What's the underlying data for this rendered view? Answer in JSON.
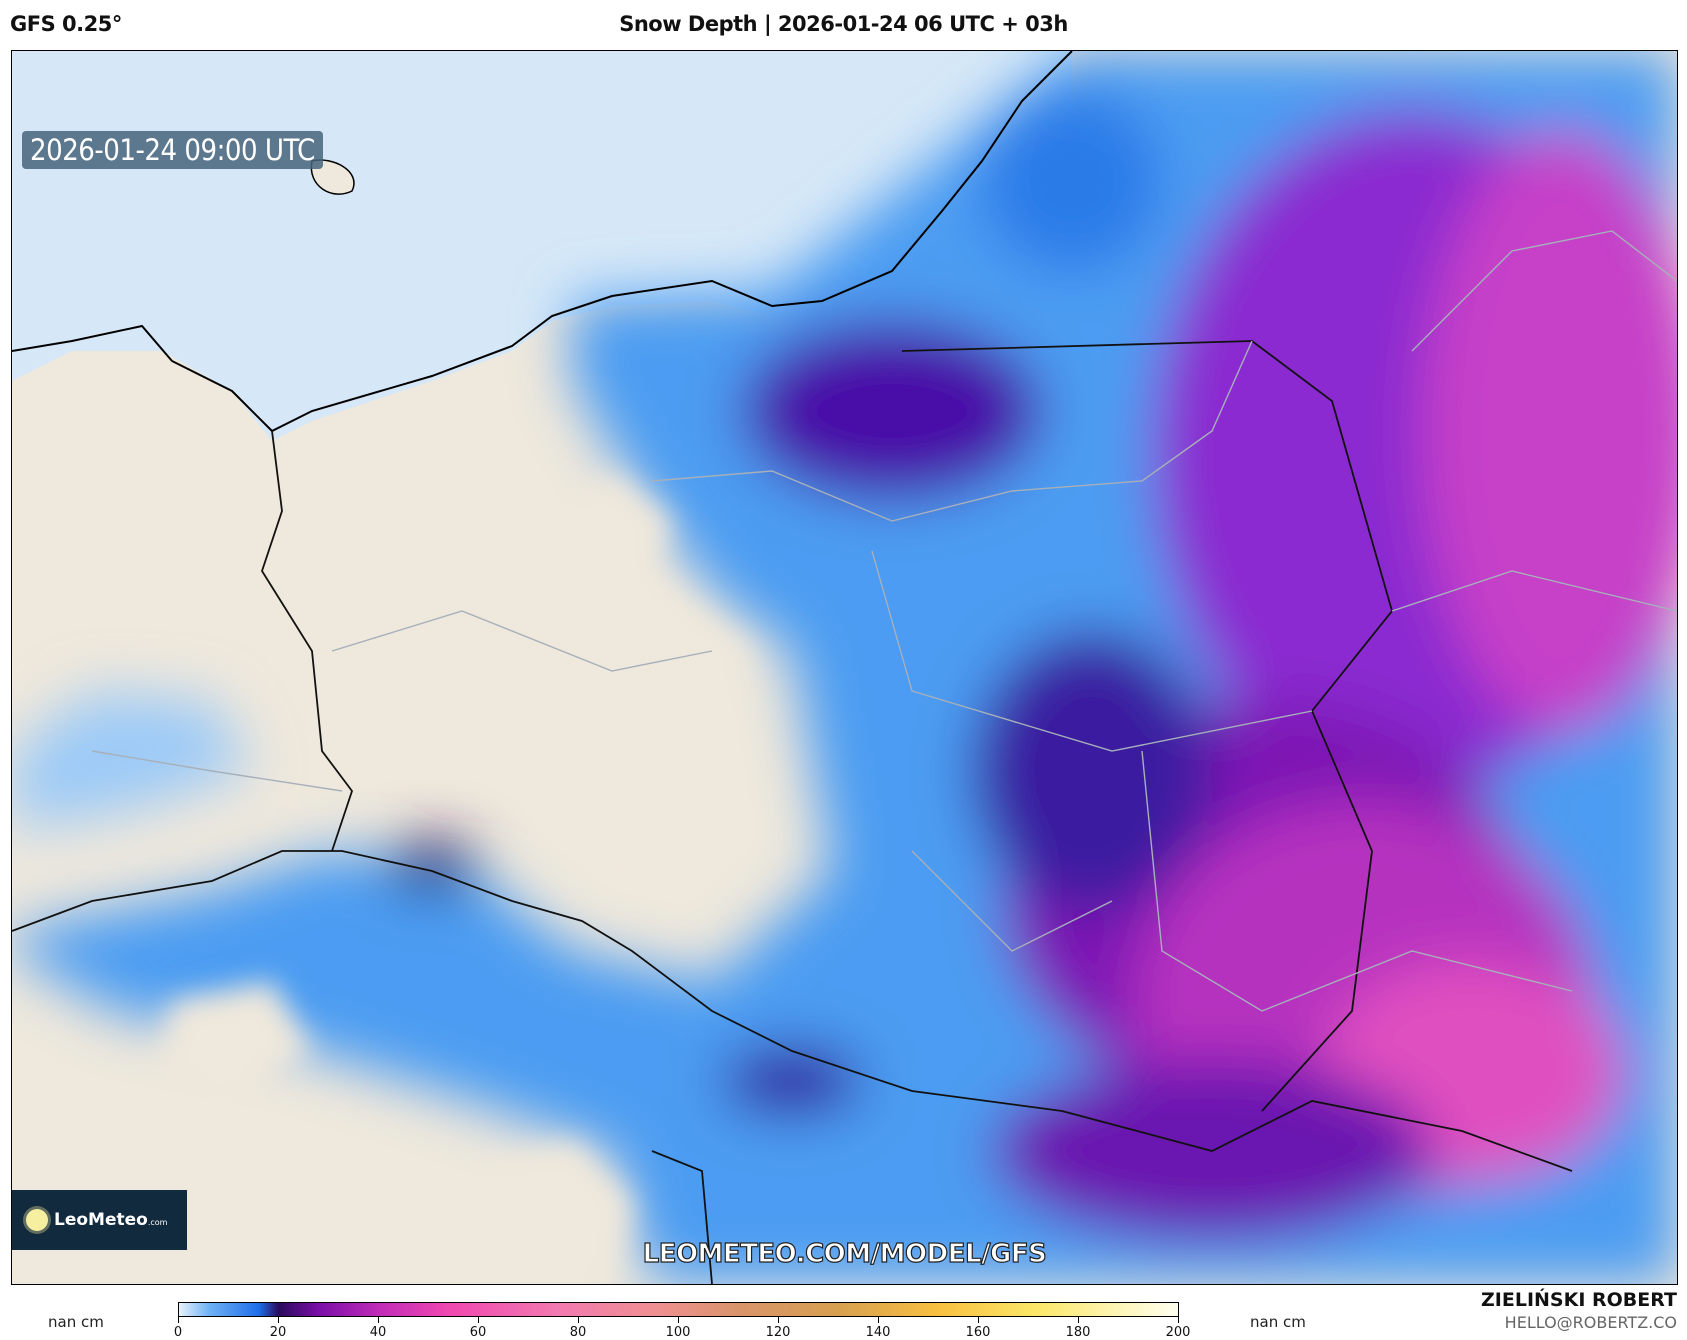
{
  "header": {
    "model": "GFS 0.25°",
    "title": "Snow Depth | 2026-01-24 06 UTC + 03h"
  },
  "map": {
    "valid_time": "2026-01-24 09:00 UTC",
    "watermark": "LEOMETEO.COM/MODEL/GFS",
    "logo": {
      "name": "LeoMeteo",
      "suffix": ".com"
    },
    "colors": {
      "sea": "#d6e8f7",
      "land": "#efe8dc",
      "coast": "#000000",
      "borders": "#9aa0a8"
    }
  },
  "colorbar": {
    "unit_left": "nan cm",
    "unit_right": "nan cm",
    "ticks": [
      "0",
      "20",
      "40",
      "60",
      "80",
      "100",
      "120",
      "140",
      "160",
      "180",
      "200"
    ],
    "range": [
      0,
      200
    ]
  },
  "credits": {
    "author": "ZIELIŃSKI ROBERT",
    "email": "HELLO@ROBERTZ.CO"
  }
}
